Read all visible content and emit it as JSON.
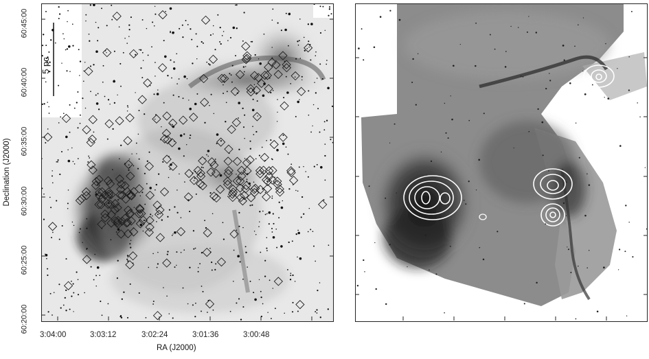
{
  "figure": {
    "y_axis_label": "Declination (J2000)",
    "x_axis_label": "RA (J2000)",
    "dec_ticks": [
      "60:45:00",
      "60:40:00",
      "60:35:00",
      "60:30:00",
      "60:25:00",
      "60:20:00"
    ],
    "ra_ticks": [
      "3:04:00",
      "3:03:12",
      "3:02:24",
      "3:01:36",
      "3:00:48"
    ],
    "scale_bar_label": "5 pc"
  },
  "colors": {
    "frame": "#222222",
    "nebula_dark": "#1a1a1a",
    "contour": "#ffffff",
    "marker": "#1e1e1e"
  }
}
